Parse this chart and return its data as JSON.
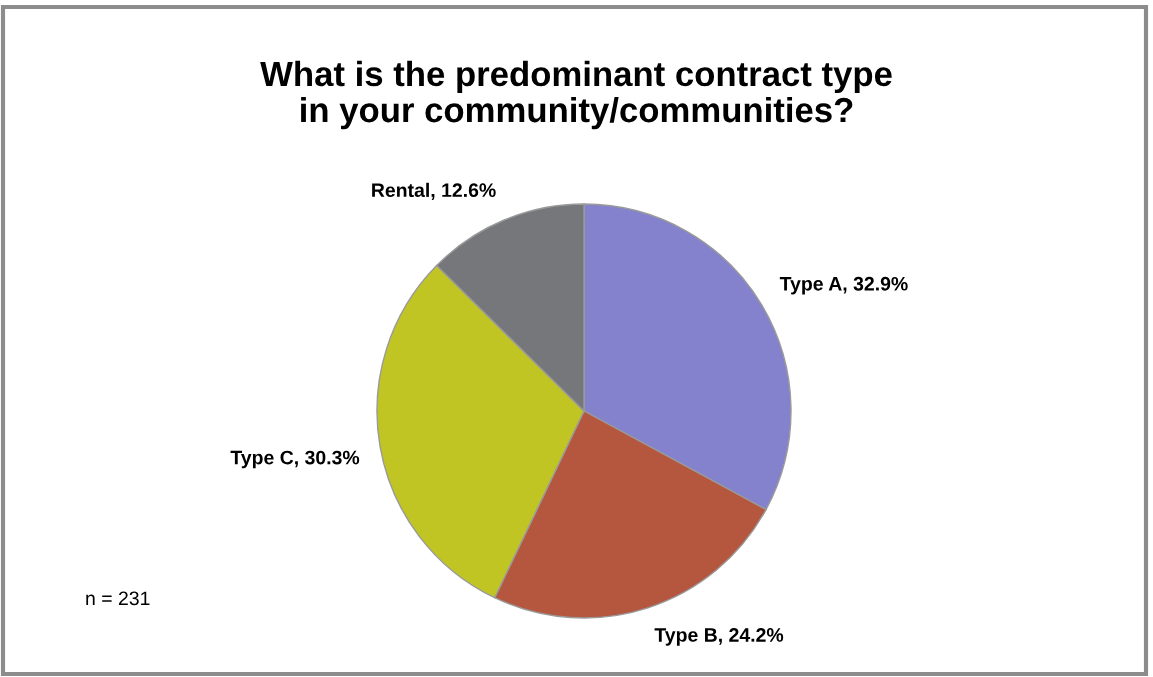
{
  "chart_data": {
    "type": "pie",
    "title": "What is the predominant contract type\nin your community/communities?",
    "categories": [
      "Type A",
      "Type B",
      "Type C",
      "Rental"
    ],
    "values": [
      32.9,
      24.2,
      30.3,
      12.6
    ],
    "colors": [
      "#8482cc",
      "#b5573f",
      "#c0c524",
      "#76777b"
    ],
    "value_labels": [
      ", 32.9%",
      ", 24.2%",
      ", 30.3%",
      ", 12.6%"
    ],
    "legend": false,
    "annotations": [
      "n = 231"
    ]
  }
}
